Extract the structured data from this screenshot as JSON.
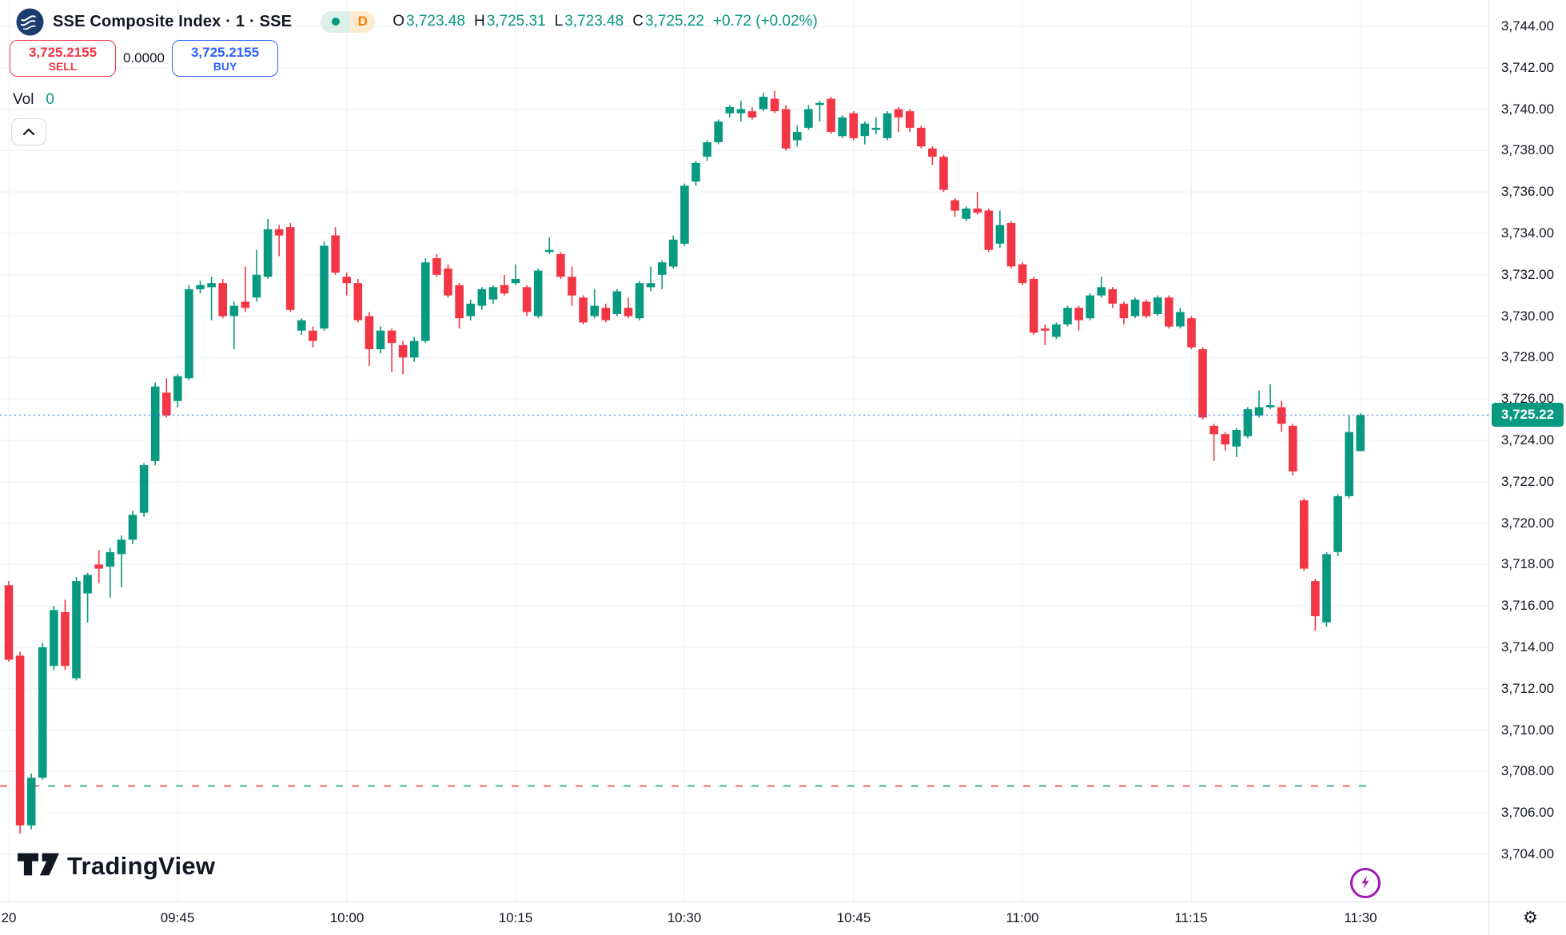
{
  "header": {
    "symbol_title": "SSE Composite Index · 1 · SSE",
    "interval_badge": "D",
    "ohlc": {
      "o_label": "O",
      "o": "3,723.48",
      "h_label": "H",
      "h": "3,725.31",
      "l_label": "L",
      "l": "3,723.48",
      "c_label": "C",
      "c": "3,725.22",
      "change": "+0.72 (+0.02%)"
    }
  },
  "trade_panel": {
    "sell_price": "3,725.2155",
    "sell_label": "SELL",
    "spread": "0.0000",
    "buy_price": "3,725.2155",
    "buy_label": "BUY"
  },
  "volume": {
    "label": "Vol",
    "value": "0"
  },
  "footer": {
    "logo_text": "TradingView"
  },
  "colors": {
    "up": "#089981",
    "down": "#F23645",
    "buy_accent": "#2962FF",
    "sell_accent": "#F23645",
    "badge_d": "#F57C00",
    "lightning": "#9C1AB1",
    "text": "#131722",
    "grid": "#F0F3FA",
    "axis_border": "#E0E3EB",
    "price_label_bg": "#089981",
    "price_line": "#2962FF"
  },
  "chart_data": {
    "type": "candlestick",
    "title": "SSE Composite Index · 1 · SSE",
    "interval_minutes": 1,
    "session_start_label": "09:30",
    "y_axis": {
      "min": 3704,
      "max": 3744,
      "step": 2,
      "labels": [
        {
          "text": "3,744.00",
          "value": 3744
        },
        {
          "text": "3,742.00",
          "value": 3742
        },
        {
          "text": "3,740.00",
          "value": 3740
        },
        {
          "text": "3,738.00",
          "value": 3738
        },
        {
          "text": "3,736.00",
          "value": 3736
        },
        {
          "text": "3,734.00",
          "value": 3734
        },
        {
          "text": "3,732.00",
          "value": 3732
        },
        {
          "text": "3,730.00",
          "value": 3730
        },
        {
          "text": "3,728.00",
          "value": 3728
        },
        {
          "text": "3,726.00",
          "value": 3726
        },
        {
          "text": "3,724.00",
          "value": 3724
        },
        {
          "text": "3,722.00",
          "value": 3722
        },
        {
          "text": "3,720.00",
          "value": 3720
        },
        {
          "text": "3,718.00",
          "value": 3718
        },
        {
          "text": "3,716.00",
          "value": 3716
        },
        {
          "text": "3,714.00",
          "value": 3714
        },
        {
          "text": "3,712.00",
          "value": 3712
        },
        {
          "text": "3,710.00",
          "value": 3710
        },
        {
          "text": "3,708.00",
          "value": 3708
        },
        {
          "text": "3,706.00",
          "value": 3706
        },
        {
          "text": "3,704.00",
          "value": 3704
        }
      ]
    },
    "x_axis": {
      "labels": [
        {
          "text": "20",
          "minute": 0
        },
        {
          "text": "09:45",
          "minute": 15
        },
        {
          "text": "10:00",
          "minute": 30
        },
        {
          "text": "10:15",
          "minute": 45
        },
        {
          "text": "10:30",
          "minute": 60
        },
        {
          "text": "10:45",
          "minute": 75
        },
        {
          "text": "11:00",
          "minute": 90
        },
        {
          "text": "11:15",
          "minute": 105
        },
        {
          "text": "11:30",
          "minute": 120
        }
      ]
    },
    "price_line": {
      "value": 3725.22,
      "label": "3,725.22"
    },
    "session_low_line": {
      "value": 3707.3
    },
    "candles_format": [
      "open",
      "high",
      "low",
      "close"
    ],
    "candles": [
      [
        3717.0,
        3717.2,
        3713.3,
        3713.4
      ],
      [
        3713.6,
        3713.8,
        3705.0,
        3705.4
      ],
      [
        3705.4,
        3707.9,
        3705.2,
        3707.7
      ],
      [
        3707.7,
        3714.2,
        3707.6,
        3714.0
      ],
      [
        3713.1,
        3716.0,
        3712.9,
        3715.8
      ],
      [
        3715.7,
        3716.3,
        3712.9,
        3713.1
      ],
      [
        3712.5,
        3717.4,
        3712.4,
        3717.2
      ],
      [
        3716.6,
        3717.6,
        3715.2,
        3717.5
      ],
      [
        3718.0,
        3718.7,
        3717.1,
        3717.8
      ],
      [
        3717.9,
        3718.8,
        3716.4,
        3718.6
      ],
      [
        3718.5,
        3719.4,
        3716.9,
        3719.2
      ],
      [
        3719.2,
        3720.6,
        3719.0,
        3720.4
      ],
      [
        3720.5,
        3722.9,
        3720.3,
        3722.8
      ],
      [
        3723.0,
        3726.8,
        3722.8,
        3726.6
      ],
      [
        3726.3,
        3727.0,
        3725.1,
        3725.2
      ],
      [
        3725.9,
        3727.2,
        3725.6,
        3727.1
      ],
      [
        3727.0,
        3731.5,
        3726.9,
        3731.3
      ],
      [
        3731.3,
        3731.7,
        3731.1,
        3731.5
      ],
      [
        3731.4,
        3731.9,
        3729.8,
        3731.6
      ],
      [
        3731.6,
        3731.8,
        3729.9,
        3730.0
      ],
      [
        3730.0,
        3730.7,
        3728.4,
        3730.5
      ],
      [
        3730.7,
        3732.4,
        3730.2,
        3730.4
      ],
      [
        3730.9,
        3733.2,
        3730.7,
        3732.0
      ],
      [
        3731.9,
        3734.7,
        3731.8,
        3734.2
      ],
      [
        3734.2,
        3734.4,
        3732.9,
        3733.9
      ],
      [
        3734.3,
        3734.5,
        3730.2,
        3730.3
      ],
      [
        3729.3,
        3729.9,
        3729.1,
        3729.8
      ],
      [
        3729.3,
        3729.5,
        3728.5,
        3728.8
      ],
      [
        3729.4,
        3733.6,
        3729.3,
        3733.4
      ],
      [
        3733.9,
        3734.3,
        3732.0,
        3732.1
      ],
      [
        3731.9,
        3732.1,
        3731.0,
        3731.6
      ],
      [
        3731.6,
        3731.8,
        3729.7,
        3729.8
      ],
      [
        3730.0,
        3730.2,
        3727.6,
        3728.4
      ],
      [
        3728.4,
        3729.5,
        3728.2,
        3729.3
      ],
      [
        3729.3,
        3729.4,
        3727.3,
        3728.7
      ],
      [
        3728.6,
        3728.8,
        3727.2,
        3728.0
      ],
      [
        3728.0,
        3729.0,
        3727.8,
        3728.8
      ],
      [
        3728.8,
        3732.8,
        3728.7,
        3732.6
      ],
      [
        3732.8,
        3733.0,
        3731.9,
        3732.0
      ],
      [
        3732.3,
        3732.5,
        3730.9,
        3731.0
      ],
      [
        3731.5,
        3731.6,
        3729.4,
        3729.9
      ],
      [
        3730.0,
        3730.8,
        3729.8,
        3730.6
      ],
      [
        3730.5,
        3731.4,
        3730.3,
        3731.3
      ],
      [
        3730.8,
        3731.5,
        3730.6,
        3731.4
      ],
      [
        3731.5,
        3732.0,
        3731.0,
        3731.1
      ],
      [
        3731.6,
        3732.5,
        3731.5,
        3731.8
      ],
      [
        3731.4,
        3731.5,
        3730.0,
        3730.2
      ],
      [
        3730.0,
        3732.3,
        3729.9,
        3732.2
      ],
      [
        3733.1,
        3733.8,
        3733.0,
        3733.2
      ],
      [
        3733.0,
        3733.1,
        3731.8,
        3731.9
      ],
      [
        3731.9,
        3732.4,
        3730.5,
        3731.0
      ],
      [
        3730.9,
        3731.0,
        3729.6,
        3729.7
      ],
      [
        3730.0,
        3731.3,
        3729.9,
        3730.5
      ],
      [
        3730.4,
        3730.6,
        3729.7,
        3729.8
      ],
      [
        3730.1,
        3731.3,
        3730.0,
        3731.2
      ],
      [
        3730.4,
        3730.9,
        3729.9,
        3730.0
      ],
      [
        3729.9,
        3731.7,
        3729.8,
        3731.6
      ],
      [
        3731.4,
        3732.4,
        3731.2,
        3731.6
      ],
      [
        3732.0,
        3732.7,
        3731.3,
        3732.6
      ],
      [
        3732.4,
        3733.9,
        3732.3,
        3733.7
      ],
      [
        3733.5,
        3736.4,
        3733.4,
        3736.3
      ],
      [
        3736.5,
        3737.5,
        3736.3,
        3737.4
      ],
      [
        3737.7,
        3738.5,
        3737.5,
        3738.4
      ],
      [
        3738.4,
        3739.5,
        3738.3,
        3739.4
      ],
      [
        3739.8,
        3740.2,
        3739.6,
        3740.1
      ],
      [
        3739.8,
        3740.4,
        3739.4,
        3740.0
      ],
      [
        3739.9,
        3740.1,
        3739.5,
        3739.6
      ],
      [
        3740.0,
        3740.8,
        3739.9,
        3740.6
      ],
      [
        3740.5,
        3740.9,
        3739.8,
        3739.9
      ],
      [
        3740.0,
        3740.2,
        3738.0,
        3738.1
      ],
      [
        3738.5,
        3739.2,
        3738.2,
        3738.9
      ],
      [
        3739.1,
        3740.2,
        3739.0,
        3740.0
      ],
      [
        3740.2,
        3740.4,
        3739.4,
        3740.3
      ],
      [
        3740.5,
        3740.6,
        3738.8,
        3738.9
      ],
      [
        3738.7,
        3739.7,
        3738.6,
        3739.6
      ],
      [
        3739.8,
        3739.9,
        3738.5,
        3738.6
      ],
      [
        3738.7,
        3739.4,
        3738.3,
        3739.3
      ],
      [
        3739.0,
        3739.6,
        3738.8,
        3739.1
      ],
      [
        3738.6,
        3739.9,
        3738.5,
        3739.8
      ],
      [
        3740.0,
        3740.1,
        3738.9,
        3739.6
      ],
      [
        3739.9,
        3740.0,
        3738.9,
        3739.1
      ],
      [
        3739.1,
        3739.2,
        3738.1,
        3738.2
      ],
      [
        3738.1,
        3738.2,
        3737.3,
        3737.7
      ],
      [
        3737.7,
        3737.8,
        3736.0,
        3736.1
      ],
      [
        3735.6,
        3735.7,
        3734.8,
        3735.1
      ],
      [
        3734.7,
        3735.3,
        3734.6,
        3735.2
      ],
      [
        3735.2,
        3736.0,
        3734.9,
        3735.0
      ],
      [
        3735.1,
        3735.2,
        3733.1,
        3733.2
      ],
      [
        3733.5,
        3735.1,
        3733.3,
        3734.4
      ],
      [
        3734.5,
        3734.6,
        3732.3,
        3732.4
      ],
      [
        3732.5,
        3732.6,
        3731.5,
        3731.6
      ],
      [
        3731.8,
        3731.9,
        3729.1,
        3729.2
      ],
      [
        3729.4,
        3729.6,
        3728.6,
        3729.3
      ],
      [
        3729.0,
        3729.7,
        3728.9,
        3729.6
      ],
      [
        3729.6,
        3730.5,
        3729.5,
        3730.4
      ],
      [
        3730.4,
        3730.5,
        3729.3,
        3729.8
      ],
      [
        3729.9,
        3731.1,
        3729.8,
        3731.0
      ],
      [
        3731.0,
        3731.9,
        3730.9,
        3731.4
      ],
      [
        3731.3,
        3731.4,
        3730.4,
        3730.6
      ],
      [
        3730.6,
        3730.7,
        3729.6,
        3729.9
      ],
      [
        3730.0,
        3730.9,
        3729.9,
        3730.8
      ],
      [
        3730.7,
        3730.8,
        3729.9,
        3730.0
      ],
      [
        3730.1,
        3731.0,
        3730.0,
        3730.9
      ],
      [
        3730.9,
        3731.0,
        3729.4,
        3729.5
      ],
      [
        3729.5,
        3730.4,
        3729.4,
        3730.2
      ],
      [
        3729.9,
        3730.0,
        3728.4,
        3728.5
      ],
      [
        3728.4,
        3728.5,
        3725.0,
        3725.1
      ],
      [
        3724.7,
        3724.8,
        3723.0,
        3724.3
      ],
      [
        3724.3,
        3724.4,
        3723.5,
        3723.8
      ],
      [
        3723.7,
        3724.6,
        3723.2,
        3724.5
      ],
      [
        3724.2,
        3725.6,
        3724.1,
        3725.5
      ],
      [
        3725.2,
        3726.4,
        3725.1,
        3725.6
      ],
      [
        3725.6,
        3726.7,
        3725.5,
        3725.7
      ],
      [
        3725.6,
        3725.9,
        3724.4,
        3724.8
      ],
      [
        3724.7,
        3724.8,
        3722.3,
        3722.5
      ],
      [
        3721.1,
        3721.2,
        3717.7,
        3717.8
      ],
      [
        3717.2,
        3717.3,
        3714.8,
        3715.5
      ],
      [
        3715.2,
        3718.6,
        3715.0,
        3718.5
      ],
      [
        3718.6,
        3721.4,
        3718.4,
        3721.3
      ],
      [
        3721.3,
        3725.2,
        3721.2,
        3724.4
      ],
      [
        3723.48,
        3725.31,
        3723.48,
        3725.22
      ]
    ]
  }
}
